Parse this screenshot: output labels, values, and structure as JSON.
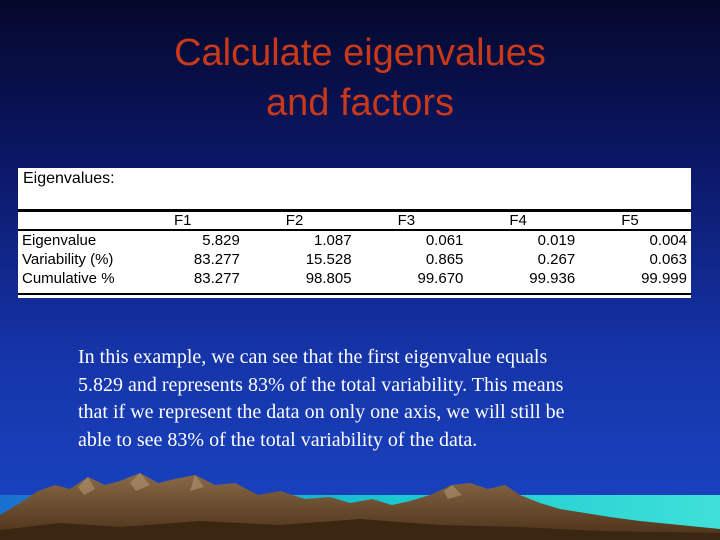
{
  "slide": {
    "title_line1": "Calculate eigenvalues",
    "title_line2": "and factors",
    "body_lines": [
      "In this example, we can see that the first eigenvalue equals",
      " 5.829 and represents 83% of the total variability. This means",
      "that if we represent the data on only one axis, we will still be",
      "able to see 83% of the total variability of the data."
    ]
  },
  "table": {
    "heading": "Eigenvalues:",
    "columns": [
      "F1",
      "F2",
      "F3",
      "F4",
      "F5"
    ],
    "rows": [
      {
        "label": "Eigenvalue",
        "values": [
          "5.829",
          "1.087",
          "0.061",
          "0.019",
          "0.004"
        ]
      },
      {
        "label": "Variability (%)",
        "values": [
          "83.277",
          "15.528",
          "0.865",
          "0.267",
          "0.063"
        ]
      },
      {
        "label": "Cumulative %",
        "values": [
          "83.277",
          "98.805",
          "99.670",
          "99.936",
          "99.999"
        ]
      }
    ]
  },
  "colors": {
    "title": "#c8391a",
    "body_text": "#ffffff",
    "background_top": "#05082a",
    "background_bottom": "#1a45c4",
    "mountain": "#6b4a2c",
    "water": "#19c8d0"
  }
}
